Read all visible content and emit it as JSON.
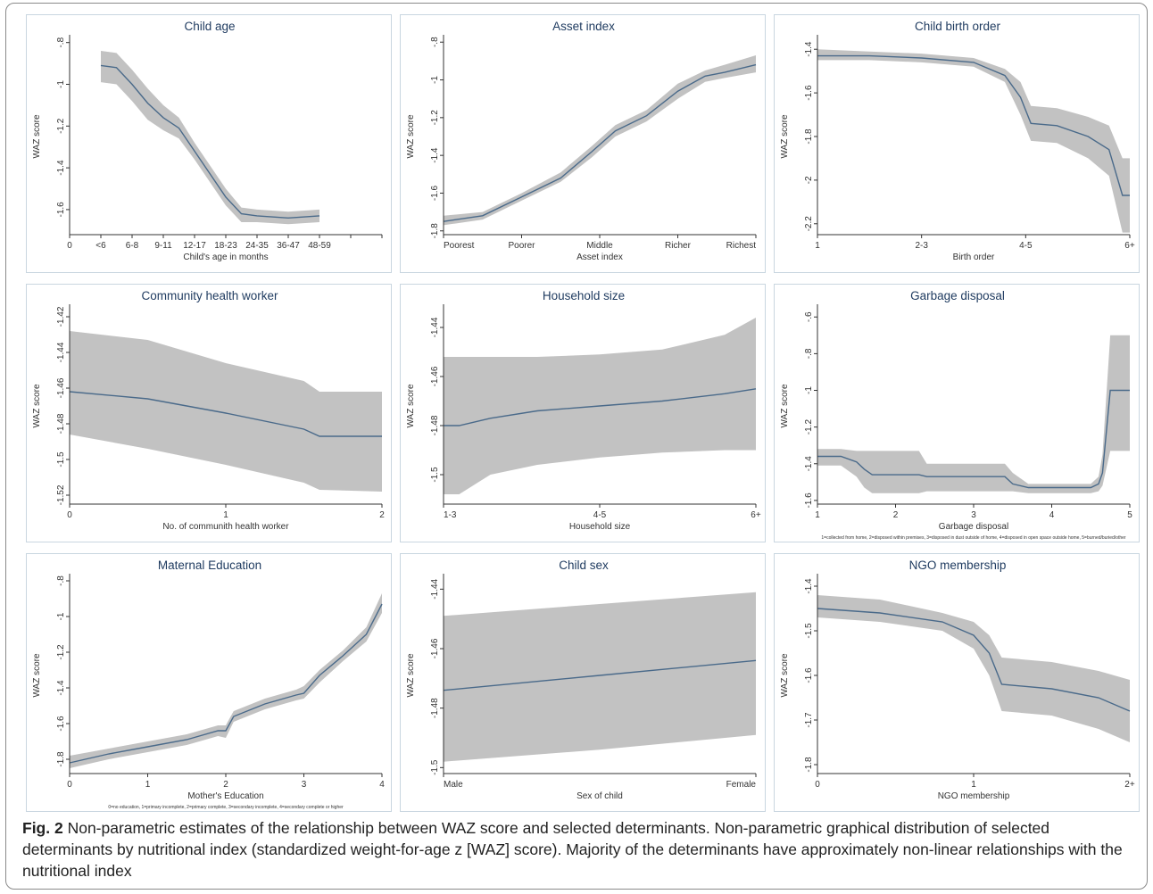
{
  "caption": {
    "label": "Fig. 2",
    "text": "Non-parametric estimates of the relationship between WAZ score and selected determinants. Non-parametric graphical distribution of selected determinants by nutritional index (standardized weight-for-age z [WAZ] score). Majority of the determinants have approximately non-linear relationships with the nutritional index"
  },
  "style": {
    "line": "#4a6a8a",
    "band": "#c2c2c2",
    "title": "#1e3a5f",
    "axis": "#333333",
    "panel_bg": "#ffffff"
  },
  "chart_data": [
    {
      "type": "line",
      "title": "Child age",
      "xlabel": "Child's age in months",
      "ylabel": "WAZ score",
      "xlim": [
        0,
        10
      ],
      "ylim": [
        -1.72,
        -0.78
      ],
      "xticks": [
        0,
        1,
        2,
        3,
        4,
        5,
        6,
        7,
        8,
        9,
        10
      ],
      "xticklabels": [
        "0",
        "<6",
        "6-8",
        "9-11",
        "12-17",
        "18-23",
        "24-35",
        "36-47",
        "48-59"
      ],
      "xticklabel_pos": [
        0,
        1,
        2,
        3,
        4,
        5,
        6,
        7,
        8
      ],
      "yticks": [
        -0.8,
        -1,
        -1.2,
        -1.4,
        -1.6
      ],
      "yticklabels": [
        "-.8",
        "-1",
        "-1.2",
        "-1.4",
        "-1.6"
      ],
      "x": [
        1,
        1.5,
        2,
        2.5,
        3,
        3.5,
        4,
        4.5,
        5,
        5.5,
        6,
        7,
        8
      ],
      "y": [
        -0.91,
        -0.92,
        -1.0,
        -1.09,
        -1.16,
        -1.21,
        -1.32,
        -1.43,
        -1.54,
        -1.62,
        -1.63,
        -1.64,
        -1.63
      ],
      "lower": [
        -0.99,
        -1.0,
        -1.08,
        -1.17,
        -1.22,
        -1.26,
        -1.36,
        -1.47,
        -1.58,
        -1.66,
        -1.66,
        -1.67,
        -1.66
      ],
      "upper": [
        -0.84,
        -0.85,
        -0.93,
        -1.02,
        -1.1,
        -1.16,
        -1.28,
        -1.39,
        -1.5,
        -1.59,
        -1.6,
        -1.61,
        -1.6
      ],
      "xmax_plot": 9
    },
    {
      "type": "line",
      "title": "Asset index",
      "xlabel": "Asset index",
      "ylabel": "WAZ score",
      "xlim": [
        1,
        5
      ],
      "ylim": [
        -1.82,
        -0.78
      ],
      "xticks": [
        1,
        2,
        3,
        4,
        5
      ],
      "xticklabels": [
        "Poorest",
        "Poorer",
        "Middle",
        "Richer",
        "Richest"
      ],
      "yticks": [
        -0.8,
        -1,
        -1.2,
        -1.4,
        -1.6,
        -1.8
      ],
      "yticklabels": [
        "-.8",
        "-1",
        "-1.2",
        "-1.4",
        "-1.6",
        "-1.8"
      ],
      "x": [
        1,
        1.5,
        2,
        2.5,
        2.9,
        3.2,
        3.6,
        4.0,
        4.35,
        4.6,
        5
      ],
      "y": [
        -1.75,
        -1.72,
        -1.62,
        -1.52,
        -1.38,
        -1.27,
        -1.19,
        -1.06,
        -0.98,
        -0.96,
        -0.92
      ],
      "lower": [
        -1.77,
        -1.74,
        -1.64,
        -1.54,
        -1.41,
        -1.3,
        -1.22,
        -1.1,
        -1.01,
        -0.99,
        -0.96
      ],
      "upper": [
        -1.72,
        -1.7,
        -1.6,
        -1.49,
        -1.35,
        -1.24,
        -1.16,
        -1.02,
        -0.95,
        -0.92,
        -0.87
      ]
    },
    {
      "type": "line",
      "title": "Child birth order",
      "xlabel": "Birth order",
      "ylabel": "WAZ score",
      "xlim": [
        1,
        4
      ],
      "ylim": [
        -2.25,
        -1.35
      ],
      "xticks": [
        1,
        2,
        3,
        4
      ],
      "xticklabels": [
        "1",
        "2-3",
        "4-5",
        "6+"
      ],
      "yticks": [
        -1.4,
        -1.6,
        -1.8,
        -2,
        -2.2
      ],
      "yticklabels": [
        "-1.4",
        "-1.6",
        "-1.8",
        "-2",
        "-2.2"
      ],
      "x": [
        1,
        1.5,
        2,
        2.5,
        2.8,
        2.95,
        3.05,
        3.3,
        3.6,
        3.8,
        3.93,
        4
      ],
      "y": [
        -1.43,
        -1.43,
        -1.44,
        -1.46,
        -1.52,
        -1.62,
        -1.74,
        -1.75,
        -1.8,
        -1.86,
        -2.07,
        -2.07
      ],
      "lower": [
        -1.45,
        -1.45,
        -1.46,
        -1.48,
        -1.55,
        -1.7,
        -1.82,
        -1.83,
        -1.9,
        -1.98,
        -2.24,
        -2.24
      ],
      "upper": [
        -1.4,
        -1.41,
        -1.42,
        -1.44,
        -1.49,
        -1.55,
        -1.66,
        -1.67,
        -1.71,
        -1.75,
        -1.9,
        -1.9
      ]
    },
    {
      "type": "line",
      "title": "Community health worker",
      "xlabel": "No. of communith health worker",
      "ylabel": "WAZ score",
      "xlim": [
        0,
        2
      ],
      "ylim": [
        -1.525,
        -1.415
      ],
      "xticks": [
        0,
        1,
        2
      ],
      "xticklabels": [
        "0",
        "1",
        "2"
      ],
      "yticks": [
        -1.42,
        -1.44,
        -1.46,
        -1.48,
        -1.5,
        -1.52
      ],
      "yticklabels": [
        "-1.42",
        "-1.44",
        "-1.46",
        "-1.48",
        "-1.5",
        "-1.52"
      ],
      "x": [
        0,
        0.5,
        1,
        1.5,
        1.6,
        2
      ],
      "y": [
        -1.462,
        -1.466,
        -1.474,
        -1.483,
        -1.487,
        -1.487
      ],
      "lower": [
        -1.486,
        -1.494,
        -1.503,
        -1.513,
        -1.517,
        -1.518
      ],
      "upper": [
        -1.428,
        -1.433,
        -1.446,
        -1.456,
        -1.462,
        -1.462
      ]
    },
    {
      "type": "line",
      "title": "Household size",
      "xlabel": "Household size",
      "ylabel": "WAZ score",
      "xlim": [
        1,
        3
      ],
      "ylim": [
        -1.512,
        -1.432
      ],
      "xticks": [
        1,
        2,
        3
      ],
      "xticklabels": [
        "1-3",
        "4-5",
        "6+"
      ],
      "yticks": [
        -1.44,
        -1.46,
        -1.48,
        -1.5
      ],
      "yticklabels": [
        "-1.44",
        "-1.46",
        "-1.48",
        "-1.5"
      ],
      "x": [
        1,
        1.1,
        1.3,
        1.6,
        2,
        2.4,
        2.8,
        3
      ],
      "y": [
        -1.48,
        -1.48,
        -1.477,
        -1.474,
        -1.472,
        -1.47,
        -1.467,
        -1.465
      ],
      "lower": [
        -1.508,
        -1.508,
        -1.5,
        -1.496,
        -1.493,
        -1.491,
        -1.49,
        -1.49
      ],
      "upper": [
        -1.452,
        -1.452,
        -1.452,
        -1.452,
        -1.451,
        -1.449,
        -1.443,
        -1.436
      ]
    },
    {
      "type": "line",
      "title": "Garbage disposal",
      "xlabel": "Garbage disposal",
      "ylabel": "WAZ score",
      "xlim": [
        1,
        5
      ],
      "ylim": [
        -1.62,
        -0.55
      ],
      "xticks": [
        1,
        2,
        3,
        4,
        5
      ],
      "xticklabels": [
        "1",
        "2",
        "3",
        "4",
        "5"
      ],
      "yticks": [
        -0.6,
        -0.8,
        -1,
        -1.2,
        -1.4,
        -1.6
      ],
      "yticklabels": [
        "-.6",
        "-.8",
        "-1",
        "-1.2",
        "-1.4",
        "-1.6"
      ],
      "x": [
        1,
        1.3,
        1.5,
        1.6,
        1.7,
        2.0,
        2.3,
        2.4,
        2.6,
        3.4,
        3.5,
        3.7,
        4.0,
        4.5,
        4.6,
        4.65,
        4.75,
        5
      ],
      "y": [
        -1.36,
        -1.36,
        -1.39,
        -1.43,
        -1.46,
        -1.46,
        -1.46,
        -1.47,
        -1.47,
        -1.47,
        -1.51,
        -1.53,
        -1.53,
        -1.53,
        -1.51,
        -1.45,
        -1.0,
        -1.0
      ],
      "lower": [
        -1.41,
        -1.41,
        -1.47,
        -1.53,
        -1.56,
        -1.56,
        -1.56,
        -1.55,
        -1.55,
        -1.55,
        -1.55,
        -1.56,
        -1.56,
        -1.56,
        -1.55,
        -1.52,
        -1.33,
        -1.33
      ],
      "upper": [
        -1.32,
        -1.32,
        -1.33,
        -1.33,
        -1.33,
        -1.33,
        -1.33,
        -1.4,
        -1.4,
        -1.4,
        -1.45,
        -1.51,
        -1.51,
        -1.51,
        -1.47,
        -1.35,
        -0.7,
        -0.7
      ],
      "note": "1=collected from home, 2=disposed within premises, 3=disposed in dust outside of home, 4=disposed in open space outside home, 5=burned/buried/other"
    },
    {
      "type": "line",
      "title": "Maternal Education",
      "xlabel": "Mother's Education",
      "ylabel": "WAZ score",
      "xlim": [
        0,
        4
      ],
      "ylim": [
        -1.88,
        -0.78
      ],
      "xticks": [
        0,
        1,
        2,
        3,
        4
      ],
      "xticklabels": [
        "0",
        "1",
        "2",
        "3",
        "4"
      ],
      "yticks": [
        -0.8,
        -1,
        -1.2,
        -1.4,
        -1.6,
        -1.8
      ],
      "yticklabels": [
        "-.8",
        "-1",
        "-1.2",
        "-1.4",
        "-1.6",
        "-1.8"
      ],
      "x": [
        0,
        0.5,
        1,
        1.5,
        1.9,
        2.0,
        2.1,
        2.5,
        2.9,
        3.0,
        3.2,
        3.5,
        3.8,
        4.0
      ],
      "y": [
        -1.82,
        -1.77,
        -1.73,
        -1.69,
        -1.64,
        -1.64,
        -1.56,
        -1.49,
        -1.44,
        -1.43,
        -1.33,
        -1.22,
        -1.1,
        -0.93
      ],
      "lower": [
        -1.85,
        -1.8,
        -1.76,
        -1.72,
        -1.67,
        -1.68,
        -1.59,
        -1.52,
        -1.47,
        -1.46,
        -1.37,
        -1.25,
        -1.14,
        -0.98
      ],
      "upper": [
        -1.78,
        -1.74,
        -1.7,
        -1.66,
        -1.61,
        -1.61,
        -1.53,
        -1.46,
        -1.41,
        -1.39,
        -1.3,
        -1.19,
        -1.06,
        -0.87
      ],
      "note": "0=no education, 1=primary incomplete, 2=primary complete, 3=secondary incomplete, 4=secondary complete or higher"
    },
    {
      "type": "line",
      "title": "Child sex",
      "xlabel": "Sex of child",
      "ylabel": "WAZ score",
      "xlim": [
        1,
        2
      ],
      "ylim": [
        -1.502,
        -1.436
      ],
      "xticks": [
        1,
        2
      ],
      "xticklabels": [
        "Male",
        "Female"
      ],
      "yticks": [
        -1.44,
        -1.46,
        -1.48,
        -1.5
      ],
      "yticklabels": [
        "-1.44",
        "-1.46",
        "-1.48",
        "-1.5"
      ],
      "x": [
        1,
        1.5,
        2
      ],
      "y": [
        -1.474,
        -1.469,
        -1.464
      ],
      "lower": [
        -1.498,
        -1.494,
        -1.489
      ],
      "upper": [
        -1.449,
        -1.445,
        -1.441
      ]
    },
    {
      "type": "line",
      "title": "NGO membership",
      "xlabel": "NGO membership",
      "ylabel": "WAZ score",
      "xlim": [
        0,
        2
      ],
      "ylim": [
        -1.82,
        -1.38
      ],
      "xticks": [
        0,
        1,
        2
      ],
      "xticklabels": [
        "0",
        "1",
        "2+"
      ],
      "yticks": [
        -1.4,
        -1.5,
        -1.6,
        -1.7,
        -1.8
      ],
      "yticklabels": [
        "-1.4",
        "-1.5",
        "-1.6",
        "-1.7",
        "-1.8"
      ],
      "x": [
        0,
        0.4,
        0.8,
        1.0,
        1.1,
        1.18,
        1.5,
        1.8,
        2.0
      ],
      "y": [
        -1.45,
        -1.46,
        -1.48,
        -1.51,
        -1.55,
        -1.62,
        -1.63,
        -1.65,
        -1.68
      ],
      "lower": [
        -1.47,
        -1.48,
        -1.5,
        -1.54,
        -1.6,
        -1.68,
        -1.69,
        -1.72,
        -1.75
      ],
      "upper": [
        -1.42,
        -1.43,
        -1.46,
        -1.48,
        -1.51,
        -1.56,
        -1.57,
        -1.59,
        -1.61
      ]
    }
  ]
}
